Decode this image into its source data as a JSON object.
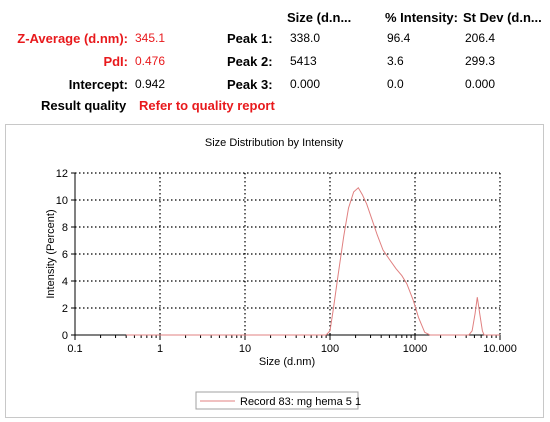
{
  "results": {
    "headers": {
      "size": "Size (d.n...",
      "intensity": "% Intensity:",
      "stdev": "St Dev (d.n..."
    },
    "z_average": {
      "label": "Z-Average (d.nm):",
      "value": "345.1"
    },
    "pdi": {
      "label": "PdI:",
      "value": "0.476"
    },
    "intercept": {
      "label": "Intercept:",
      "value": "0.942"
    },
    "result_quality": {
      "label": "Result quality",
      "value": "Refer to quality report"
    },
    "peaks": [
      {
        "label": "Peak 1:",
        "size": "338.0",
        "intensity": "96.4",
        "stdev": "206.4"
      },
      {
        "label": "Peak 2:",
        "size": "5413",
        "intensity": "3.6",
        "stdev": "299.3"
      },
      {
        "label": "Peak 3:",
        "size": "0.000",
        "intensity": "0.0",
        "stdev": "0.000"
      }
    ],
    "colors": {
      "accent_red": "#e8191c"
    }
  },
  "chart_data": {
    "type": "line",
    "title": "Size Distribution by Intensity",
    "xlabel": "Size (d.nm)",
    "ylabel": "Intensity (Percent)",
    "xscale": "log",
    "xlim": [
      0.1,
      10000
    ],
    "ylim": [
      0,
      12
    ],
    "x_tick_values": [
      0.1,
      1,
      10,
      100,
      1000,
      10000
    ],
    "x_tick_labels": [
      "0.1",
      "1",
      "10",
      "100",
      "1000",
      "10.000"
    ],
    "y_tick_values": [
      0,
      2,
      4,
      6,
      8,
      10,
      12
    ],
    "y_tick_labels": [
      "0",
      "2",
      "4",
      "6",
      "8",
      "10",
      "12"
    ],
    "grid": true,
    "legend_position": "bottom-center",
    "series": [
      {
        "name": "Record 83: mg hema 5 1",
        "color": "#e08080",
        "x": [
          0.4,
          90,
          100,
          110,
          125,
          145,
          165,
          190,
          215,
          240,
          270,
          310,
          360,
          420,
          500,
          600,
          700,
          800,
          950,
          1100,
          1300,
          1500,
          4300,
          4700,
          5100,
          5400,
          5800,
          6200,
          6500,
          10000
        ],
        "y": [
          0,
          0,
          0.3,
          2.0,
          4.5,
          7.3,
          9.4,
          10.6,
          10.9,
          10.4,
          9.7,
          8.6,
          7.4,
          6.3,
          5.6,
          4.9,
          4.4,
          3.8,
          2.6,
          1.3,
          0.2,
          0,
          0,
          0.3,
          1.6,
          2.8,
          1.5,
          0.3,
          0,
          0
        ]
      }
    ]
  }
}
